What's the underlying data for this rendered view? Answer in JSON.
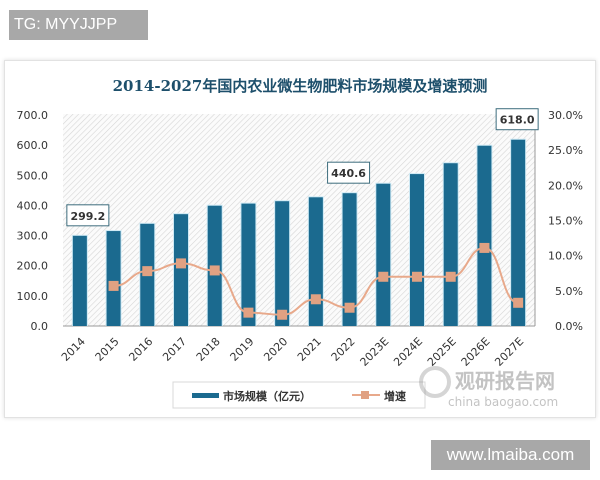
{
  "badge_top": "TG: MYYJJPP",
  "badge_bottom": "www.lmaiba.com",
  "watermark": {
    "text_cn": "观研报告网",
    "text_en": "china baogao.com"
  },
  "colors": {
    "bar": "#1b6a8f",
    "line": "#e8a98b",
    "marker": "#e0a182",
    "title": "#1d4f6b"
  },
  "chart_data": {
    "type": "bar+line",
    "title": "2014-2027年国内农业微生物肥料市场规模及增速预测",
    "categories": [
      "2014",
      "2015",
      "2016",
      "2017",
      "2018",
      "2019",
      "2020",
      "2021",
      "2022",
      "2023E",
      "2024E",
      "2025E",
      "2026E",
      "2027E"
    ],
    "series": [
      {
        "name": "市场规模（亿元）",
        "type": "bar",
        "axis": "left",
        "values": [
          299.2,
          315,
          339,
          371,
          399,
          406,
          414,
          427,
          440.6,
          472,
          504,
          540,
          598,
          618.0
        ]
      },
      {
        "name": "增速",
        "type": "line",
        "axis": "right",
        "unit": "%",
        "values": [
          null,
          5.7,
          7.8,
          8.9,
          7.9,
          1.9,
          1.6,
          3.8,
          2.6,
          7.0,
          7.0,
          7.0,
          11.1,
          3.3
        ]
      }
    ],
    "data_labels": [
      {
        "category": "2014",
        "text": "299.2"
      },
      {
        "category": "2022",
        "text": "440.6"
      },
      {
        "category": "2027E",
        "text": "618.0"
      }
    ],
    "y_left": {
      "range": [
        0,
        700
      ],
      "ticks": [
        "0.0",
        "100.0",
        "200.0",
        "300.0",
        "400.0",
        "500.0",
        "600.0",
        "700.0"
      ]
    },
    "y_right": {
      "range": [
        0,
        30
      ],
      "ticks": [
        "0.0%",
        "5.0%",
        "10.0%",
        "15.0%",
        "20.0%",
        "25.0%",
        "30.0%"
      ]
    },
    "legend_position": "bottom",
    "grid": false
  }
}
